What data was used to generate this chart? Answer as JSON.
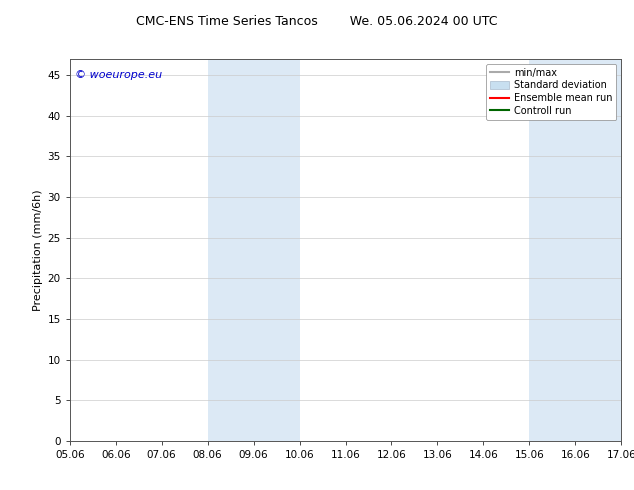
{
  "title_left": "CMC-ENS Time Series Tancos",
  "title_right": "We. 05.06.2024 00 UTC",
  "ylabel": "Precipitation (mm/6h)",
  "xlabel": "",
  "xlim": [
    0,
    12
  ],
  "ylim": [
    0,
    47
  ],
  "yticks": [
    0,
    5,
    10,
    15,
    20,
    25,
    30,
    35,
    40,
    45
  ],
  "xtick_labels": [
    "05.06",
    "06.06",
    "07.06",
    "08.06",
    "09.06",
    "10.06",
    "11.06",
    "12.06",
    "13.06",
    "14.06",
    "15.06",
    "16.06",
    "17.06"
  ],
  "xtick_positions": [
    0,
    1,
    2,
    3,
    4,
    5,
    6,
    7,
    8,
    9,
    10,
    11,
    12
  ],
  "shaded_regions": [
    {
      "xmin": 3,
      "xmax": 5,
      "color": "#dce9f5"
    },
    {
      "xmin": 10,
      "xmax": 12,
      "color": "#dce9f5"
    }
  ],
  "copyright_text": "© woeurope.eu",
  "copyright_color": "#0000cc",
  "legend_items": [
    {
      "label": "min/max",
      "color": "#aaaaaa",
      "lw": 1.5
    },
    {
      "label": "Standard deviation",
      "color": "#c8dff0",
      "lw": 4
    },
    {
      "label": "Ensemble mean run",
      "color": "#ff0000",
      "lw": 1.5
    },
    {
      "label": "Controll run",
      "color": "#006600",
      "lw": 1.5
    }
  ],
  "background_color": "#ffffff",
  "fig_width": 6.34,
  "fig_height": 4.9,
  "dpi": 100,
  "title_fontsize": 9,
  "ylabel_fontsize": 8,
  "tick_fontsize": 7.5,
  "legend_fontsize": 7,
  "copyright_fontsize": 8
}
